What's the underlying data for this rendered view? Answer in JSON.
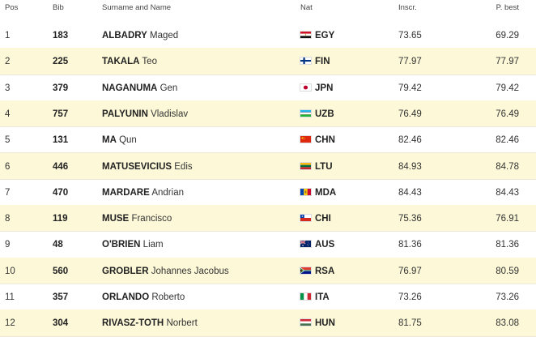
{
  "columns": {
    "pos": "Pos",
    "bib": "Bib",
    "name": "Surname and Name",
    "nat": "Nat",
    "insc": "Inscr.",
    "pb": "P. best"
  },
  "rows": [
    {
      "pos": "1",
      "bib": "183",
      "surname": "ALBADRY",
      "first": "Maged",
      "nat": "EGY",
      "flag": "egypt-flag-icon",
      "insc": "73.65",
      "pb": "69.29"
    },
    {
      "pos": "2",
      "bib": "225",
      "surname": "TAKALA",
      "first": "Teo",
      "nat": "FIN",
      "flag": "finland-flag-icon",
      "insc": "77.97",
      "pb": "77.97"
    },
    {
      "pos": "3",
      "bib": "379",
      "surname": "NAGANUMA",
      "first": "Gen",
      "nat": "JPN",
      "flag": "japan-flag-icon",
      "insc": "79.42",
      "pb": "79.42"
    },
    {
      "pos": "4",
      "bib": "757",
      "surname": "PALYUNIN",
      "first": "Vladislav",
      "nat": "UZB",
      "flag": "uzbekistan-flag-icon",
      "insc": "76.49",
      "pb": "76.49"
    },
    {
      "pos": "5",
      "bib": "131",
      "surname": "MA",
      "first": "Qun",
      "nat": "CHN",
      "flag": "china-flag-icon",
      "insc": "82.46",
      "pb": "82.46"
    },
    {
      "pos": "6",
      "bib": "446",
      "surname": "MATUSEVICIUS",
      "first": "Edis",
      "nat": "LTU",
      "flag": "lithuania-flag-icon",
      "insc": "84.93",
      "pb": "84.78"
    },
    {
      "pos": "7",
      "bib": "470",
      "surname": "MARDARE",
      "first": "Andrian",
      "nat": "MDA",
      "flag": "moldova-flag-icon",
      "insc": "84.43",
      "pb": "84.43"
    },
    {
      "pos": "8",
      "bib": "119",
      "surname": "MUSE",
      "first": "Francisco",
      "nat": "CHI",
      "flag": "chile-flag-icon",
      "insc": "75.36",
      "pb": "76.91"
    },
    {
      "pos": "9",
      "bib": "48",
      "surname": "O'BRIEN",
      "first": "Liam",
      "nat": "AUS",
      "flag": "australia-flag-icon",
      "insc": "81.36",
      "pb": "81.36"
    },
    {
      "pos": "10",
      "bib": "560",
      "surname": "GROBLER",
      "first": "Johannes Jacobus",
      "nat": "RSA",
      "flag": "south-africa-flag-icon",
      "insc": "76.97",
      "pb": "80.59"
    },
    {
      "pos": "11",
      "bib": "357",
      "surname": "ORLANDO",
      "first": "Roberto",
      "nat": "ITA",
      "flag": "italy-flag-icon",
      "insc": "73.26",
      "pb": "73.26"
    },
    {
      "pos": "12",
      "bib": "304",
      "surname": "RIVASZ-TOTH",
      "first": "Norbert",
      "nat": "HUN",
      "flag": "hungary-flag-icon",
      "insc": "81.75",
      "pb": "83.08"
    }
  ],
  "colors": {
    "alt_row": "#fdf9d8",
    "row_border": "#ece9d8"
  }
}
